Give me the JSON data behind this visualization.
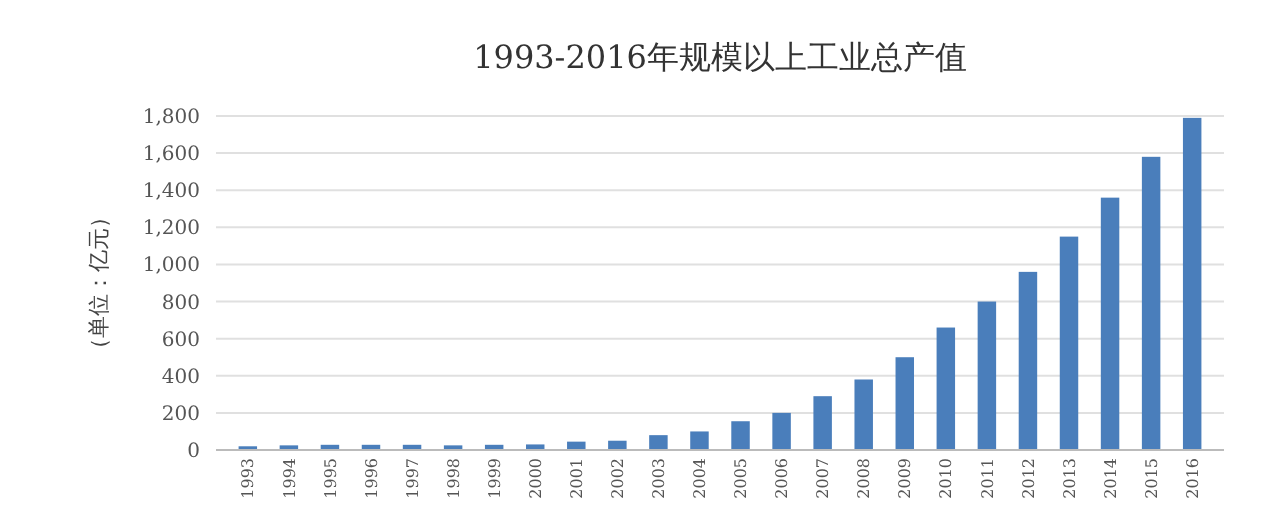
{
  "chart_data": {
    "type": "bar",
    "title": "1993-2016年规模以上工业总产值",
    "ylabel": "（单位：亿元）",
    "categories": [
      "1993",
      "1994",
      "1995",
      "1996",
      "1997",
      "1998",
      "1999",
      "2000",
      "2001",
      "2002",
      "2003",
      "2004",
      "2005",
      "2006",
      "2007",
      "2008",
      "2009",
      "2010",
      "2011",
      "2012",
      "2013",
      "2014",
      "2015",
      "2016"
    ],
    "values": [
      20,
      25,
      28,
      28,
      28,
      25,
      28,
      30,
      45,
      50,
      80,
      100,
      155,
      200,
      290,
      380,
      500,
      660,
      800,
      960,
      1150,
      1360,
      1580,
      1790
    ],
    "color": "#4a7ebb",
    "ylim": [
      0,
      1800
    ],
    "yticks": [
      0,
      {
        "value": 200,
        "label": "200"
      },
      {
        "value": 400,
        "label": "400"
      },
      {
        "value": 600,
        "label": "600"
      },
      {
        "value": 800,
        "label": "800"
      },
      {
        "value": 1000,
        "label": "1,000"
      },
      {
        "value": 1200,
        "label": "1,200"
      },
      {
        "value": 1400,
        "label": "1,400"
      },
      {
        "value": 1600,
        "label": "1,600"
      },
      {
        "value": 1800,
        "label": "1,800"
      }
    ],
    "grid": "y"
  }
}
